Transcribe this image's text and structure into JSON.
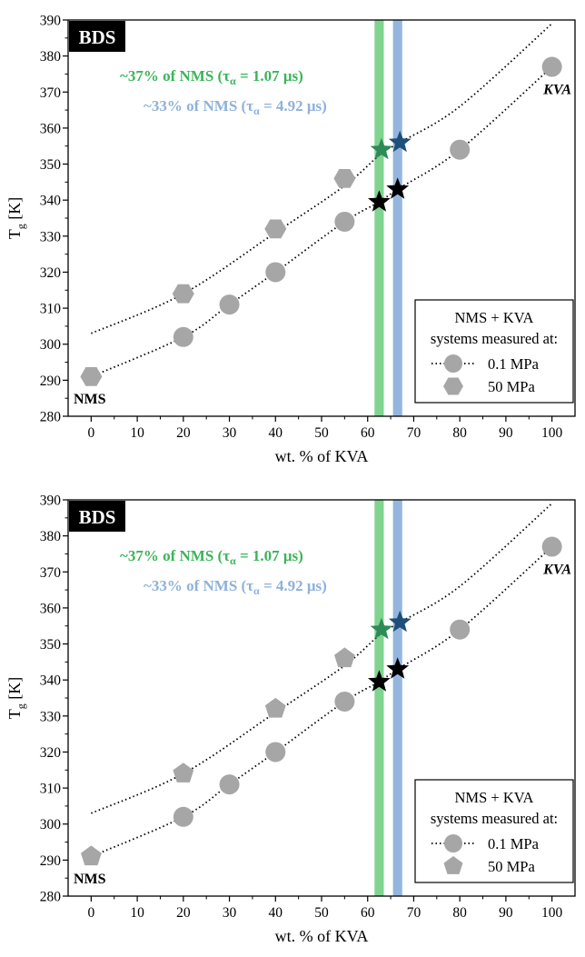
{
  "chart_data": [
    {
      "type": "scatter",
      "panel": "top",
      "badge": "BDS",
      "xlabel": "wt. % of KVA",
      "ylabel_main": "T",
      "ylabel_sub": "g",
      "ylabel_unit": " [K]",
      "xlim": [
        -5,
        105
      ],
      "ylim": [
        280,
        390
      ],
      "xticks": [
        0,
        10,
        20,
        30,
        40,
        50,
        60,
        70,
        80,
        90,
        100
      ],
      "yticks": [
        280,
        290,
        300,
        310,
        320,
        330,
        340,
        350,
        360,
        370,
        380,
        390
      ],
      "annotations": {
        "green_text": "~37% of NMS (τ",
        "green_sub": "α",
        "green_text2": " = 1.07 μs)",
        "blue_text": "~33% of NMS (τ",
        "blue_sub": "α",
        "blue_text2": " = 4.92 μs)",
        "nms_label": "NMS",
        "kva_label": "KVA"
      },
      "bands": [
        {
          "name": "green",
          "x": [
            61.5,
            63.5
          ],
          "color": "#7fd48f"
        },
        {
          "name": "blue",
          "x": [
            65.5,
            67.5
          ],
          "color": "#94b6de"
        }
      ],
      "legend": {
        "title1": "NMS + KVA",
        "title2": "systems measured at:",
        "entries": [
          "0.1 MPa",
          "50 MPa"
        ],
        "pressure_marker": "hexagon"
      },
      "series": [
        {
          "name": "0.1 MPa",
          "marker": "circle",
          "color": "#a6a6a6",
          "points": [
            [
              20,
              302
            ],
            [
              30,
              311
            ],
            [
              40,
              320
            ],
            [
              55,
              334
            ],
            [
              80,
              354
            ],
            [
              100,
              377
            ]
          ]
        },
        {
          "name": "50 MPa",
          "marker": "hexagon",
          "color": "#a6a6a6",
          "points": [
            [
              0,
              291
            ],
            [
              20,
              314
            ],
            [
              40,
              332
            ],
            [
              55,
              346
            ]
          ]
        }
      ],
      "fit_lines": [
        {
          "points": [
            [
              0,
              291
            ],
            [
              20,
              302
            ],
            [
              30,
              311
            ],
            [
              40,
              320
            ],
            [
              55,
              334
            ],
            [
              62.5,
              339.5
            ],
            [
              66.5,
              343
            ],
            [
              80,
              354
            ],
            [
              100,
              377
            ]
          ]
        },
        {
          "points": [
            [
              0,
              303
            ],
            [
              20,
              314
            ],
            [
              40,
              331
            ],
            [
              55,
              344
            ],
            [
              63,
              353
            ],
            [
              67,
              356
            ],
            [
              80,
              366
            ],
            [
              100,
              389
            ]
          ]
        }
      ],
      "stars": [
        {
          "x": 63,
          "y": 354,
          "color": "#2e8b57"
        },
        {
          "x": 67,
          "y": 356,
          "color": "#1f4e79"
        },
        {
          "x": 62.5,
          "y": 339.5,
          "color": "#000000"
        },
        {
          "x": 66.5,
          "y": 343,
          "color": "#000000"
        }
      ]
    },
    {
      "type": "scatter",
      "panel": "bottom",
      "badge": "BDS",
      "xlabel": "wt. % of KVA",
      "ylabel_main": "T",
      "ylabel_sub": "g",
      "ylabel_unit": " [K]",
      "xlim": [
        -5,
        105
      ],
      "ylim": [
        280,
        390
      ],
      "xticks": [
        0,
        10,
        20,
        30,
        40,
        50,
        60,
        70,
        80,
        90,
        100
      ],
      "yticks": [
        280,
        290,
        300,
        310,
        320,
        330,
        340,
        350,
        360,
        370,
        380,
        390
      ],
      "annotations": {
        "green_text": "~37% of NMS (τ",
        "green_sub": "α",
        "green_text2": " = 1.07 μs)",
        "blue_text": "~33% of NMS (τ",
        "blue_sub": "α",
        "blue_text2": " = 4.92 μs)",
        "nms_label": "NMS",
        "kva_label": "KVA"
      },
      "bands": [
        {
          "name": "green",
          "x": [
            61.5,
            63.5
          ],
          "color": "#7fd48f"
        },
        {
          "name": "blue",
          "x": [
            65.5,
            67.5
          ],
          "color": "#94b6de"
        }
      ],
      "legend": {
        "title1": "NMS + KVA",
        "title2": "systems measured at:",
        "entries": [
          "0.1 MPa",
          "50 MPa"
        ],
        "pressure_marker": "pentagon"
      },
      "series": [
        {
          "name": "0.1 MPa",
          "marker": "circle",
          "color": "#a6a6a6",
          "points": [
            [
              20,
              302
            ],
            [
              30,
              311
            ],
            [
              40,
              320
            ],
            [
              55,
              334
            ],
            [
              80,
              354
            ],
            [
              100,
              377
            ]
          ]
        },
        {
          "name": "50 MPa",
          "marker": "pentagon",
          "color": "#a6a6a6",
          "points": [
            [
              0,
              291
            ],
            [
              20,
              314
            ],
            [
              40,
              332
            ],
            [
              55,
              346
            ]
          ]
        }
      ],
      "fit_lines": [
        {
          "points": [
            [
              0,
              291
            ],
            [
              20,
              302
            ],
            [
              30,
              311
            ],
            [
              40,
              320
            ],
            [
              55,
              334
            ],
            [
              62.5,
              339.5
            ],
            [
              66.5,
              343
            ],
            [
              80,
              354
            ],
            [
              100,
              377
            ]
          ]
        },
        {
          "points": [
            [
              0,
              303
            ],
            [
              20,
              314
            ],
            [
              40,
              331
            ],
            [
              55,
              344
            ],
            [
              63,
              353
            ],
            [
              67,
              356
            ],
            [
              80,
              366
            ],
            [
              100,
              389
            ]
          ]
        }
      ],
      "stars": [
        {
          "x": 63,
          "y": 354,
          "color": "#2e8b57"
        },
        {
          "x": 67,
          "y": 356,
          "color": "#1f4e79"
        },
        {
          "x": 62.5,
          "y": 339.5,
          "color": "#000000"
        },
        {
          "x": 66.5,
          "y": 343,
          "color": "#000000"
        }
      ]
    }
  ]
}
